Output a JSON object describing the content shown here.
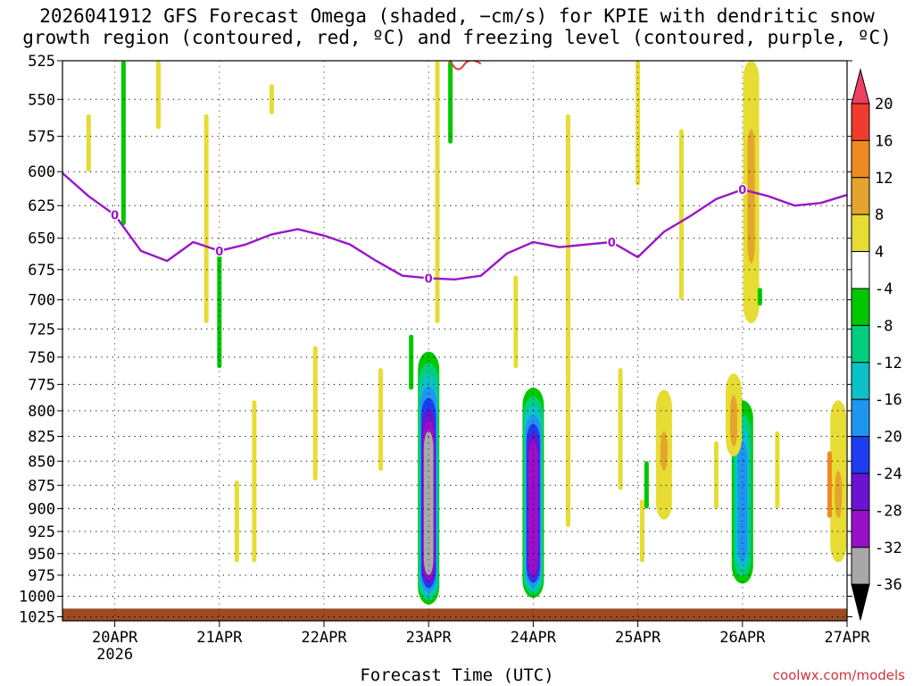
{
  "chart_data": {
    "type": "heatmap",
    "title_line1": "2026041912 GFS Forecast Omega (shaded, −cm/s) for KPIE with dendritic snow",
    "title_line2": "growth region (contoured, red, ºC) and freezing level (contoured, purple, ºC)",
    "xlabel": "Forecast Time (UTC)",
    "ylabel": "",
    "credit": "coolwx.com/models",
    "x_ticks": [
      "20APR",
      "21APR",
      "22APR",
      "23APR",
      "24APR",
      "25APR",
      "26APR",
      "27APR"
    ],
    "x_tick_hours": [
      12,
      36,
      60,
      84,
      108,
      132,
      156,
      180
    ],
    "x_year_label": "2026",
    "xlim_hours": [
      0,
      180
    ],
    "y_ticks": [
      525,
      550,
      575,
      600,
      625,
      650,
      675,
      700,
      725,
      750,
      775,
      800,
      825,
      850,
      875,
      900,
      925,
      950,
      975,
      1000,
      1025
    ],
    "ylim_hpa": [
      1030,
      525
    ],
    "grid": true,
    "colorbar": {
      "labels": [
        "20",
        "16",
        "12",
        "8",
        "4",
        "-4",
        "-8",
        "-12",
        "-16",
        "-20",
        "-24",
        "-28",
        "-32",
        "-36"
      ],
      "colors": [
        "#ee4060",
        "#f03c2e",
        "#ee8a22",
        "#e5a52c",
        "#e6dc33",
        "#ffffff",
        "#00c800",
        "#00cf80",
        "#0cc2c8",
        "#1e96f0",
        "#1e3cf0",
        "#6a14d2",
        "#9a10c8",
        "#a8a8a8",
        "#000000"
      ]
    },
    "freezing_level": {
      "label": "0",
      "color": "#9a16c8",
      "hours": [
        0,
        6,
        12,
        18,
        24,
        30,
        36,
        42,
        48,
        54,
        60,
        66,
        72,
        78,
        84,
        90,
        96,
        102,
        108,
        114,
        120,
        126,
        132,
        138,
        144,
        150,
        156,
        162,
        168,
        174,
        180
      ],
      "pressure_hpa": [
        601,
        618,
        632,
        660,
        668,
        653,
        660,
        655,
        647,
        643,
        648,
        655,
        668,
        680,
        682,
        683,
        680,
        662,
        653,
        657,
        655,
        653,
        665,
        645,
        633,
        620,
        613,
        618,
        625,
        623,
        617
      ]
    },
    "omega_blobs": [
      {
        "hour": 84,
        "top": 745,
        "bottom": 1010,
        "peak": -36,
        "core_top": 820,
        "core_bottom": 975
      },
      {
        "hour": 108,
        "top": 778,
        "bottom": 1002,
        "peak": -28,
        "core_top": 830,
        "core_bottom": 975
      },
      {
        "hour": 156,
        "top": 790,
        "bottom": 985,
        "peak": -16,
        "core_top": 830,
        "core_bottom": 960
      },
      {
        "hour": 138,
        "top": 780,
        "bottom": 912,
        "peak": 8,
        "core_top": 820,
        "core_bottom": 860
      },
      {
        "hour": 154,
        "top": 765,
        "bottom": 845,
        "peak": 8,
        "core_top": 785,
        "core_bottom": 835
      },
      {
        "hour": 158,
        "top": 525,
        "bottom": 720,
        "peak": 8,
        "core_top": 570,
        "core_bottom": 670
      },
      {
        "hour": 178,
        "top": 790,
        "bottom": 960,
        "peak": 8,
        "core_top": 860,
        "core_bottom": 910
      }
    ],
    "dgz_contour_color": "#ee3434"
  }
}
